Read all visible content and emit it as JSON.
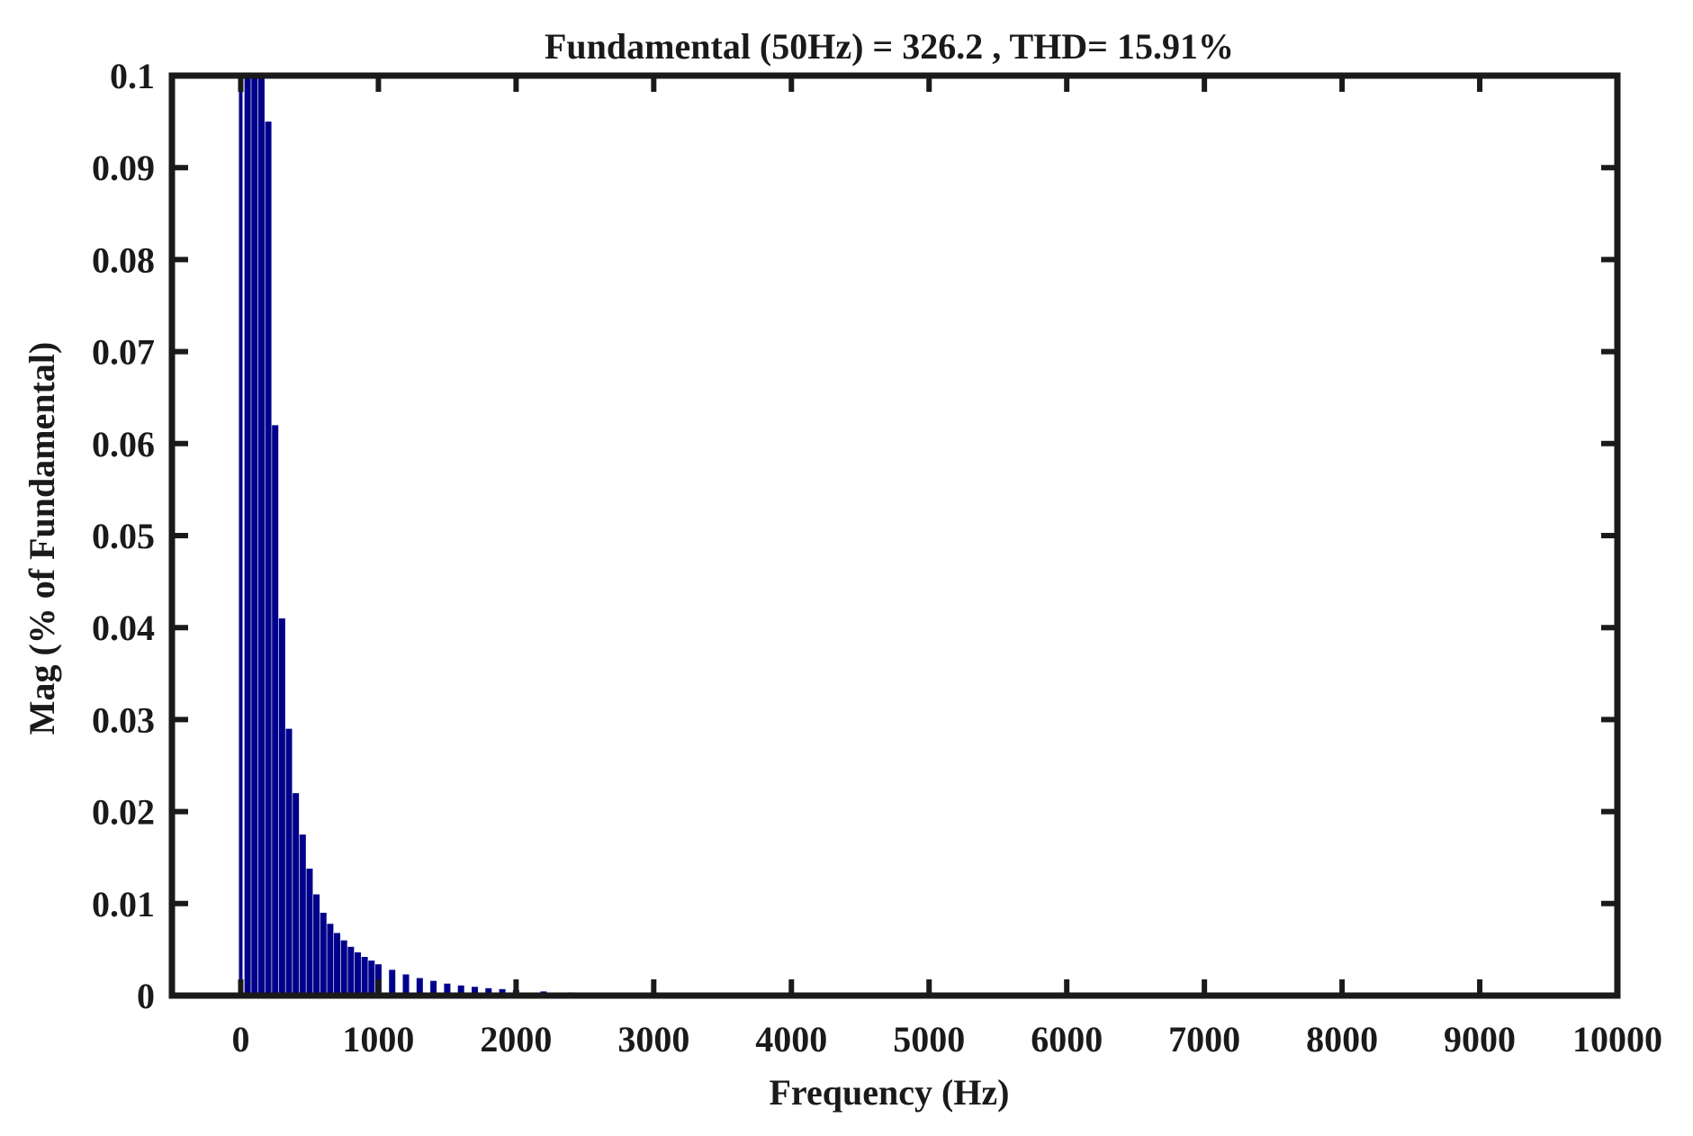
{
  "chart_data": {
    "type": "bar",
    "title": "Fundamental (50Hz) = 326.2 , THD= 15.91%",
    "xlabel": "Frequency (Hz)",
    "ylabel": "Mag (% of Fundamental)",
    "xlim": [
      -500,
      10000
    ],
    "ylim": [
      0,
      0.1
    ],
    "xticks": [
      "0",
      "1000",
      "2000",
      "3000",
      "4000",
      "5000",
      "6000",
      "7000",
      "8000",
      "9000",
      "10000"
    ],
    "yticks": [
      "0",
      "0.01",
      "0.02",
      "0.03",
      "0.04",
      "0.05",
      "0.06",
      "0.07",
      "0.08",
      "0.09",
      "0.1"
    ],
    "grid": false,
    "bar_color": "#00008b",
    "x": [
      50,
      100,
      150,
      200,
      250,
      300,
      350,
      400,
      450,
      500,
      550,
      600,
      650,
      700,
      750,
      800,
      850,
      900,
      950,
      1000,
      1100,
      1200,
      1300,
      1400,
      1500,
      1600,
      1700,
      1800,
      1900,
      2000,
      2200,
      2400,
      2600,
      2800,
      3000
    ],
    "values": [
      0.1,
      0.1,
      0.1,
      0.095,
      0.062,
      0.041,
      0.029,
      0.022,
      0.0175,
      0.0138,
      0.011,
      0.009,
      0.0078,
      0.0068,
      0.006,
      0.0053,
      0.0047,
      0.0042,
      0.0038,
      0.0034,
      0.0028,
      0.0023,
      0.0019,
      0.0016,
      0.0013,
      0.0011,
      0.00095,
      0.0008,
      0.0007,
      0.0006,
      0.00045,
      0.00035,
      0.00025,
      0.00018,
      0.0001
    ]
  }
}
